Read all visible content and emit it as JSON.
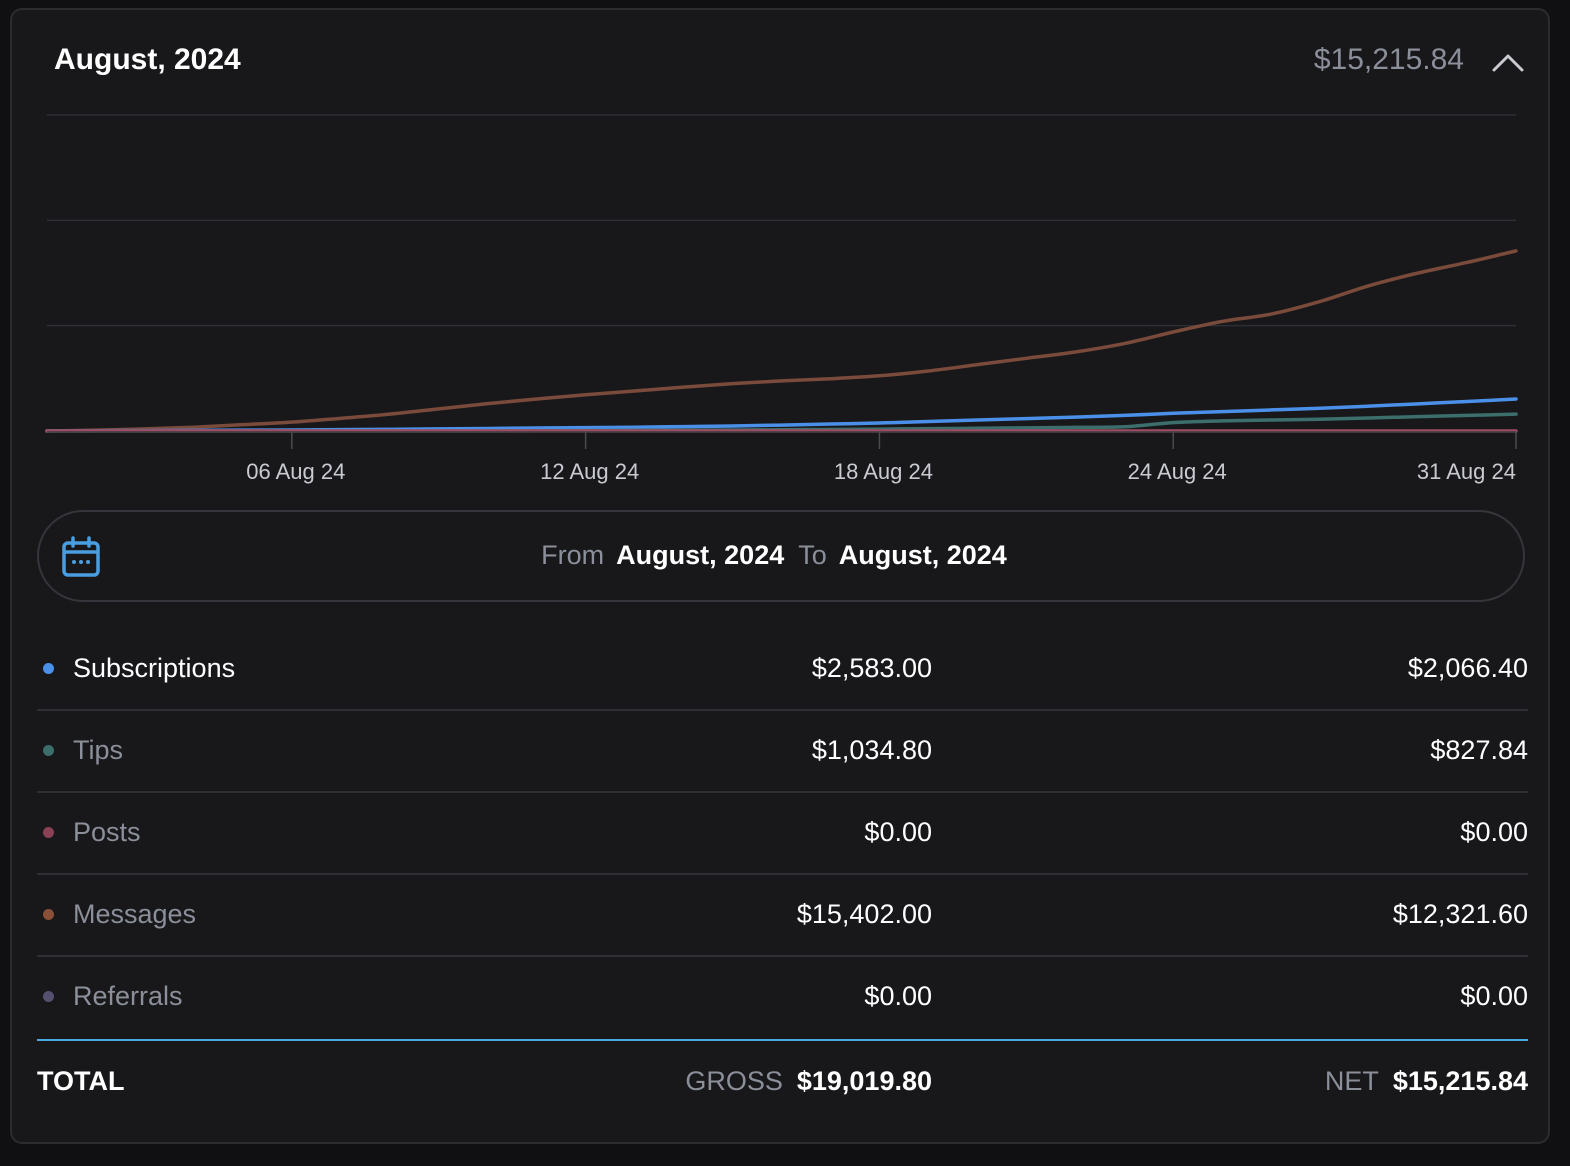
{
  "header": {
    "title": "August, 2024",
    "total": "$15,215.84",
    "collapse_icon": "chevron-up-icon"
  },
  "chart_data": {
    "type": "line",
    "x": [
      "01 Aug 24",
      "02 Aug 24",
      "03 Aug 24",
      "04 Aug 24",
      "05 Aug 24",
      "06 Aug 24",
      "07 Aug 24",
      "08 Aug 24",
      "09 Aug 24",
      "10 Aug 24",
      "11 Aug 24",
      "12 Aug 24",
      "13 Aug 24",
      "14 Aug 24",
      "15 Aug 24",
      "16 Aug 24",
      "17 Aug 24",
      "18 Aug 24",
      "19 Aug 24",
      "20 Aug 24",
      "21 Aug 24",
      "22 Aug 24",
      "23 Aug 24",
      "24 Aug 24",
      "25 Aug 24",
      "26 Aug 24",
      "27 Aug 24",
      "28 Aug 24",
      "29 Aug 24",
      "30 Aug 24",
      "31 Aug 24"
    ],
    "xtick_labels": [
      "06 Aug 24",
      "12 Aug 24",
      "18 Aug 24",
      "24 Aug 24",
      "31 Aug 24"
    ],
    "ylim": [
      0,
      15000
    ],
    "grid": true,
    "series": [
      {
        "name": "Messages",
        "color": "#7a4a3a",
        "values": [
          0,
          40,
          100,
          180,
          300,
          420,
          600,
          800,
          1050,
          1300,
          1520,
          1720,
          1900,
          2080,
          2250,
          2380,
          2480,
          2620,
          2850,
          3150,
          3450,
          3750,
          4150,
          4700,
          5200,
          5550,
          6150,
          6900,
          7500,
          8000,
          8550
        ]
      },
      {
        "name": "Subscriptions",
        "color": "#4a90e8",
        "values": [
          0,
          10,
          20,
          30,
          40,
          50,
          65,
          80,
          100,
          120,
          140,
          160,
          180,
          210,
          240,
          280,
          330,
          380,
          450,
          520,
          590,
          660,
          740,
          840,
          920,
          1000,
          1080,
          1180,
          1290,
          1400,
          1520
        ]
      },
      {
        "name": "Tips",
        "color": "#3c6e6c",
        "values": [
          0,
          0,
          0,
          0,
          0,
          0,
          0,
          0,
          0,
          0,
          10,
          20,
          30,
          40,
          50,
          60,
          70,
          90,
          110,
          130,
          150,
          170,
          200,
          400,
          480,
          520,
          560,
          620,
          680,
          740,
          800
        ]
      },
      {
        "name": "Posts",
        "color": "#a04c64",
        "values": [
          0,
          0,
          0,
          0,
          0,
          0,
          0,
          0,
          0,
          0,
          0,
          0,
          0,
          0,
          0,
          0,
          0,
          0,
          0,
          0,
          0,
          0,
          0,
          0,
          0,
          0,
          0,
          0,
          0,
          0,
          0
        ]
      }
    ]
  },
  "date_range": {
    "from_label": "From",
    "from_value": "August, 2024",
    "to_label": "To",
    "to_value": "August, 2024",
    "icon": "calendar-icon"
  },
  "rows": [
    {
      "name": "Subscriptions",
      "gross": "$2,583.00",
      "net": "$2,066.40",
      "color": "#4a90e8"
    },
    {
      "name": "Tips",
      "gross": "$1,034.80",
      "net": "$827.84",
      "color": "#3c6e6c"
    },
    {
      "name": "Posts",
      "gross": "$0.00",
      "net": "$0.00",
      "color": "#8a4055"
    },
    {
      "name": "Messages",
      "gross": "$15,402.00",
      "net": "$12,321.60",
      "color": "#8a5038"
    },
    {
      "name": "Referrals",
      "gross": "$0.00",
      "net": "$0.00",
      "color": "#54506e"
    }
  ],
  "total": {
    "label": "TOTAL",
    "gross_label": "GROSS",
    "gross": "$19,019.80",
    "net_label": "NET",
    "net": "$15,215.84"
  }
}
